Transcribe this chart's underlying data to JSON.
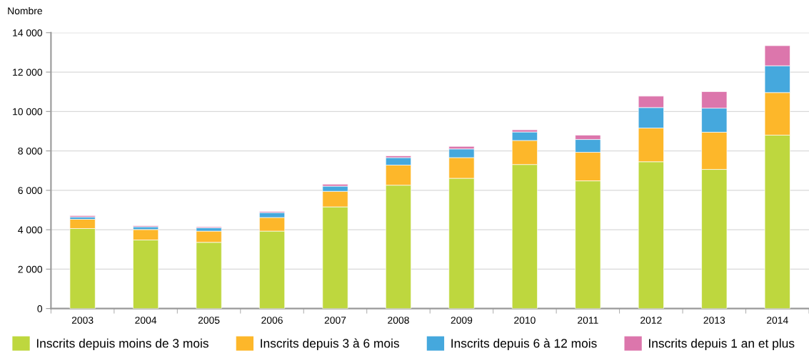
{
  "chart_data": {
    "type": "bar",
    "stacked": true,
    "ylabel": "Nombre",
    "categories": [
      "2003",
      "2004",
      "2005",
      "2006",
      "2007",
      "2008",
      "2009",
      "2010",
      "2011",
      "2012",
      "2013",
      "2014"
    ],
    "series": [
      {
        "name": "Inscrits depuis moins de 3 mois",
        "color": "#bed73e",
        "values": [
          4060,
          3480,
          3360,
          3930,
          5160,
          6260,
          6610,
          7310,
          6480,
          7450,
          7060,
          8800
        ]
      },
      {
        "name": "Inscrits depuis 3 à 6 mois",
        "color": "#fdb72a",
        "values": [
          470,
          530,
          570,
          690,
          790,
          1020,
          1050,
          1220,
          1450,
          1710,
          1890,
          2160
        ]
      },
      {
        "name": "Inscrits depuis 6 à 12 mois",
        "color": "#45a8dd",
        "values": [
          120,
          140,
          170,
          250,
          260,
          380,
          440,
          430,
          650,
          1040,
          1220,
          1360
        ]
      },
      {
        "name": "Inscrits depuis 1 an et plus",
        "color": "#dc76ac",
        "values": [
          65,
          50,
          50,
          60,
          100,
          90,
          130,
          110,
          220,
          580,
          840,
          1020
        ]
      }
    ],
    "ylim": [
      0,
      14000
    ],
    "yticks": [
      {
        "value": 0,
        "label": "0"
      },
      {
        "value": 2000,
        "label": "2 000"
      },
      {
        "value": 4000,
        "label": "4 000"
      },
      {
        "value": 6000,
        "label": "6 000"
      },
      {
        "value": 8000,
        "label": "8 000"
      },
      {
        "value": 10000,
        "label": "10 000"
      },
      {
        "value": 12000,
        "label": "12 000"
      },
      {
        "value": 14000,
        "label": "14 000"
      }
    ],
    "grid": "y",
    "legend": "bottom"
  }
}
